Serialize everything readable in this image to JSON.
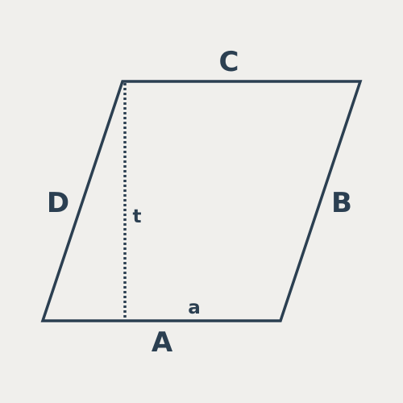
{
  "colors": {
    "background": "#f0efec",
    "stroke": "#2b3f51"
  },
  "labels": {
    "side_bottom": "A",
    "side_right": "B",
    "side_top": "C",
    "side_left": "D",
    "height": "t",
    "base_segment": "a"
  }
}
